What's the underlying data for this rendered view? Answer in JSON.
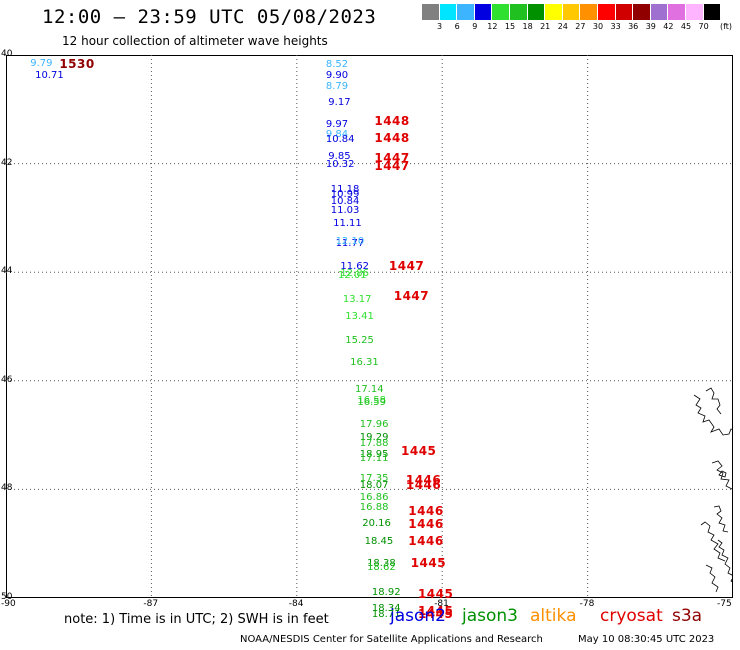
{
  "header": {
    "title": "12:00 – 23:59 UTC 05/08/2023",
    "subtitle": "12 hour collection of altimeter wave heights"
  },
  "legend": {
    "colors": [
      "#808080",
      "#00e5ff",
      "#3cb4ff",
      "#0000e0",
      "#30e030",
      "#20c020",
      "#009000",
      "#ffff00",
      "#ffc800",
      "#ff9000",
      "#ff0000",
      "#d00000",
      "#900000",
      "#a070d0",
      "#e070e0",
      "#ffb4ff",
      "#000000"
    ],
    "labels": [
      "3",
      "6",
      "9",
      "12",
      "15",
      "18",
      "21",
      "24",
      "27",
      "30",
      "33",
      "36",
      "39",
      "42",
      "45",
      "70"
    ],
    "unit": "(ft)"
  },
  "map": {
    "lat_labels": [
      "40",
      "42",
      "44",
      "46",
      "48",
      "50"
    ],
    "lon_labels": [
      "-90",
      "-87",
      "-84",
      "-81",
      "-78",
      "-75"
    ]
  },
  "observations": [
    {
      "t": "9.79",
      "c": "#3cb4ff",
      "lat": 40.05,
      "lon": -89.5
    },
    {
      "t": "10.71",
      "c": "#0000e0",
      "lat": 40.27,
      "lon": -89.4
    },
    {
      "t": "8.52",
      "c": "#3cb4ff",
      "lat": 40.07,
      "lon": -83.4
    },
    {
      "t": "9.90",
      "c": "#0000e0",
      "lat": 40.27,
      "lon": -83.4
    },
    {
      "t": "8.79",
      "c": "#3cb4ff",
      "lat": 40.47,
      "lon": -83.4
    },
    {
      "t": "9.17",
      "c": "#0000e0",
      "lat": 40.77,
      "lon": -83.35
    },
    {
      "t": "9.97",
      "c": "#0000e0",
      "lat": 41.17,
      "lon": -83.4
    },
    {
      "t": "9.84",
      "c": "#3cb4ff",
      "lat": 41.37,
      "lon": -83.4
    },
    {
      "t": "10.84",
      "c": "#0000e0",
      "lat": 41.45,
      "lon": -83.4
    },
    {
      "t": "9.85",
      "c": "#0000e0",
      "lat": 41.77,
      "lon": -83.35
    },
    {
      "t": "10.32",
      "c": "#0000e0",
      "lat": 41.92,
      "lon": -83.4
    },
    {
      "t": "11.18",
      "c": "#0000e0",
      "lat": 42.37,
      "lon": -83.3
    },
    {
      "t": "10.99",
      "c": "#0000e0",
      "lat": 42.47,
      "lon": -83.3
    },
    {
      "t": "10.84",
      "c": "#0000e0",
      "lat": 42.6,
      "lon": -83.3
    },
    {
      "t": "11.03",
      "c": "#0000e0",
      "lat": 42.77,
      "lon": -83.3
    },
    {
      "t": "11.11",
      "c": "#0000e0",
      "lat": 43.0,
      "lon": -83.25
    },
    {
      "t": "11.77",
      "c": "#0000e0",
      "lat": 43.37,
      "lon": -83.2
    },
    {
      "t": "12.10",
      "c": "#3cb4ff",
      "lat": 43.33,
      "lon": -83.2
    },
    {
      "t": "11.62",
      "c": "#0000e0",
      "lat": 43.8,
      "lon": -83.1
    },
    {
      "t": "12.01",
      "c": "#30e030",
      "lat": 43.96,
      "lon": -83.15
    },
    {
      "t": "12.86",
      "c": "#30e030",
      "lat": 43.92,
      "lon": -83.1
    },
    {
      "t": "13.17",
      "c": "#30e030",
      "lat": 44.4,
      "lon": -83.05
    },
    {
      "t": "13.41",
      "c": "#30e030",
      "lat": 44.72,
      "lon": -83.0
    },
    {
      "t": "15.25",
      "c": "#20c020",
      "lat": 45.16,
      "lon": -83.0
    },
    {
      "t": "16.31",
      "c": "#20c020",
      "lat": 45.57,
      "lon": -82.9
    },
    {
      "t": "17.14",
      "c": "#20c020",
      "lat": 46.05,
      "lon": -82.8
    },
    {
      "t": "16.58",
      "c": "#30e030",
      "lat": 46.26,
      "lon": -82.75
    },
    {
      "t": "16.59",
      "c": "#20c020",
      "lat": 46.3,
      "lon": -82.75
    },
    {
      "t": "17.96",
      "c": "#20c020",
      "lat": 46.7,
      "lon": -82.7
    },
    {
      "t": "19.29",
      "c": "#009000",
      "lat": 46.95,
      "lon": -82.7
    },
    {
      "t": "17.88",
      "c": "#20c020",
      "lat": 47.05,
      "lon": -82.7
    },
    {
      "t": "18.95",
      "c": "#009000",
      "lat": 47.25,
      "lon": -82.7
    },
    {
      "t": "17.11",
      "c": "#20c020",
      "lat": 47.33,
      "lon": -82.7
    },
    {
      "t": "17.35",
      "c": "#20c020",
      "lat": 47.7,
      "lon": -82.7
    },
    {
      "t": "18.07",
      "c": "#009000",
      "lat": 47.83,
      "lon": -82.7
    },
    {
      "t": "16.86",
      "c": "#20c020",
      "lat": 48.05,
      "lon": -82.7
    },
    {
      "t": "16.88",
      "c": "#20c020",
      "lat": 48.24,
      "lon": -82.7
    },
    {
      "t": "20.16",
      "c": "#009000",
      "lat": 48.52,
      "lon": -82.65
    },
    {
      "t": "18.45",
      "c": "#009000",
      "lat": 48.85,
      "lon": -82.6
    },
    {
      "t": "18.38",
      "c": "#009000",
      "lat": 49.26,
      "lon": -82.55
    },
    {
      "t": "18.62",
      "c": "#20c020",
      "lat": 49.33,
      "lon": -82.55
    },
    {
      "t": "18.92",
      "c": "#009000",
      "lat": 49.8,
      "lon": -82.45
    },
    {
      "t": "18.34",
      "c": "#009000",
      "lat": 50.1,
      "lon": -82.45
    },
    {
      "t": "18.71",
      "c": "#009000",
      "lat": 50.2,
      "lon": -82.45
    }
  ],
  "times": [
    {
      "t": "1530",
      "c": "#900000",
      "lat": 40.07,
      "lon": -88.9
    },
    {
      "t": "1448",
      "c": "#e00000",
      "lat": 41.13,
      "lon": -82.4
    },
    {
      "t": "1448",
      "c": "#e00000",
      "lat": 41.43,
      "lon": -82.4
    },
    {
      "t": "1447",
      "c": "#e00000",
      "lat": 41.8,
      "lon": -82.4
    },
    {
      "t": "1447",
      "c": "#e00000",
      "lat": 41.95,
      "lon": -82.4
    },
    {
      "t": "1447",
      "c": "#e00000",
      "lat": 43.8,
      "lon": -82.1
    },
    {
      "t": "1447",
      "c": "#e00000",
      "lat": 44.35,
      "lon": -82.0
    },
    {
      "t": "1445",
      "c": "#e00000",
      "lat": 47.2,
      "lon": -81.85
    },
    {
      "t": "1446",
      "c": "#e00000",
      "lat": 47.74,
      "lon": -81.75
    },
    {
      "t": "1446",
      "c": "#e00000",
      "lat": 47.83,
      "lon": -81.75
    },
    {
      "t": "1446",
      "c": "#e00000",
      "lat": 48.3,
      "lon": -81.7
    },
    {
      "t": "1446",
      "c": "#e00000",
      "lat": 48.55,
      "lon": -81.7
    },
    {
      "t": "1446",
      "c": "#e00000",
      "lat": 48.85,
      "lon": -81.7
    },
    {
      "t": "1445",
      "c": "#e00000",
      "lat": 49.27,
      "lon": -81.65
    },
    {
      "t": "1445",
      "c": "#e00000",
      "lat": 49.83,
      "lon": -81.5
    },
    {
      "t": "1445",
      "c": "#e00000",
      "lat": 50.14,
      "lon": -81.5
    },
    {
      "t": "1445",
      "c": "#e00000",
      "lat": 50.2,
      "lon": -81.5
    }
  ],
  "note": "note: 1) Time is in UTC; 2) SWH is in feet",
  "satellites": [
    {
      "name": "jason2",
      "color": "#0000e0"
    },
    {
      "name": "jason3",
      "color": "#009000"
    },
    {
      "name": "altika",
      "color": "#ff9000"
    },
    {
      "name": "cryosat",
      "color": "#e00000"
    },
    {
      "name": "s3a",
      "color": "#900000"
    }
  ],
  "footer": {
    "credit": "NOAA/NESDIS Center for Satellite Applications and Research",
    "timestamp": "May 10 08:30:45 UTC 2023"
  }
}
